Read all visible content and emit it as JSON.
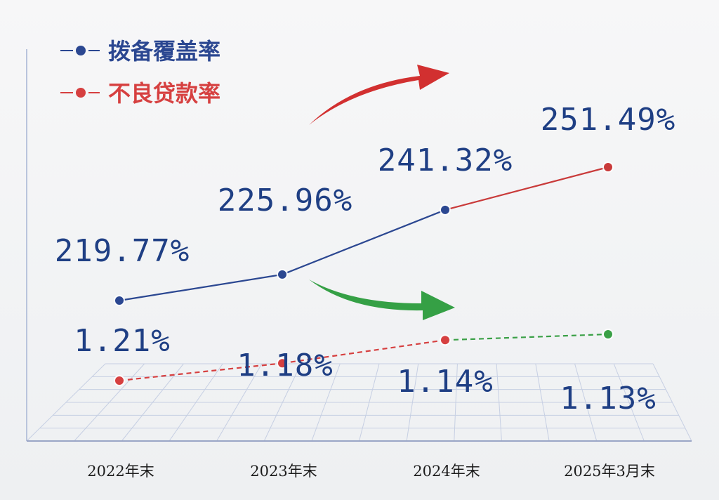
{
  "chart_data": {
    "type": "line",
    "categories": [
      "2022年末",
      "2023年末",
      "2024年末",
      "2025年3月末"
    ],
    "series": [
      {
        "name": "拨备覆盖率",
        "values": [
          219.77,
          225.96,
          241.32,
          251.49
        ],
        "labels": [
          "219.77%",
          "225.96%",
          "241.32%",
          "251.49%"
        ],
        "color": "#2b4791",
        "last_segment_color": "#c93a3a",
        "trend": "up"
      },
      {
        "name": "不良贷款率",
        "values": [
          1.21,
          1.18,
          1.14,
          1.13
        ],
        "labels": [
          "1.21%",
          "1.18%",
          "1.14%",
          "1.13%"
        ],
        "color": "#d64040",
        "last_segment_color": "#3aa046",
        "style": "dashed",
        "trend": "down"
      }
    ],
    "legend_position": "top-left",
    "grid": "perspective floor grid"
  },
  "colors": {
    "value_text": "#1f3f84",
    "up_arrow": "#d23030",
    "down_arrow": "#35a045",
    "grid_line": "#c6cfe3"
  }
}
